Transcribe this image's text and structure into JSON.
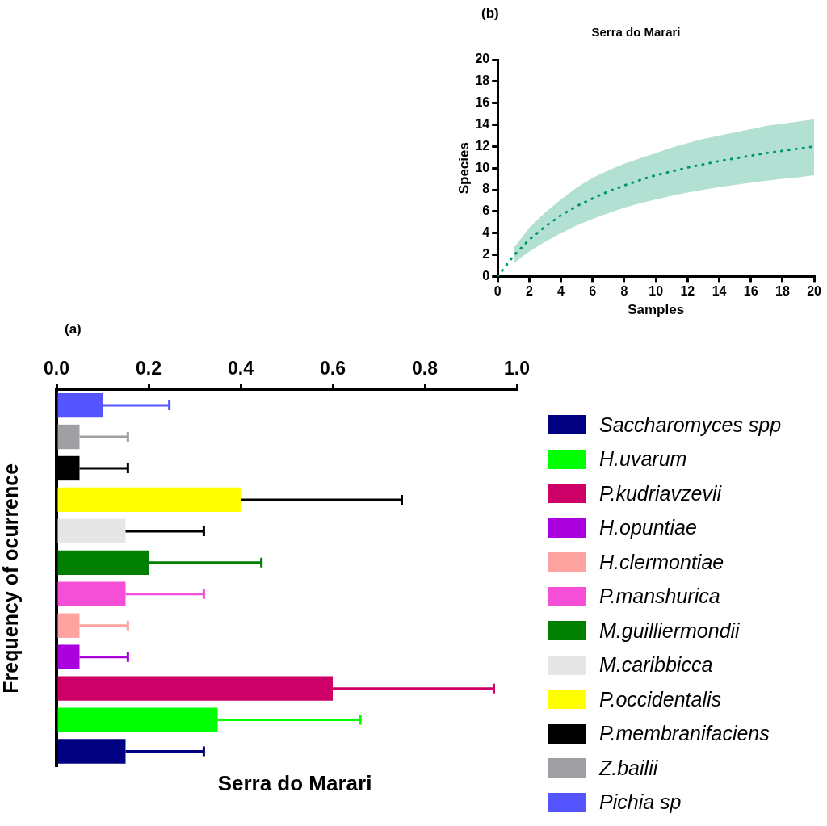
{
  "chart_data": [
    {
      "type": "line",
      "title": "Serra do Marari",
      "xlabel": "Samples",
      "ylabel": "Species",
      "annotations": [
        "(b)"
      ],
      "xlim": [
        0,
        20
      ],
      "xticks": [
        0,
        2,
        4,
        6,
        8,
        10,
        12,
        14,
        16,
        18,
        20
      ],
      "ylim": [
        0,
        20
      ],
      "yticks": [
        0,
        2,
        4,
        6,
        8,
        10,
        12,
        14,
        16,
        18,
        20
      ],
      "legend": false,
      "marker": "none",
      "line_style": "dotted",
      "series": [
        {
          "color": "#00996b",
          "x": [
            0,
            1,
            2,
            3,
            4,
            5,
            6,
            7,
            8,
            9,
            10,
            11,
            12,
            13,
            14,
            15,
            16,
            17,
            18,
            19,
            20
          ],
          "values": [
            0,
            1.9,
            3.4,
            4.6,
            5.65,
            6.5,
            7.2,
            7.85,
            8.4,
            8.9,
            9.35,
            9.7,
            10.05,
            10.35,
            10.65,
            10.9,
            11.15,
            11.4,
            11.6,
            11.8,
            12.0
          ],
          "lower": [
            null,
            1.2,
            2.3,
            3.2,
            4.0,
            4.7,
            5.3,
            5.85,
            6.35,
            6.75,
            7.1,
            7.45,
            7.75,
            8.0,
            8.25,
            8.45,
            8.65,
            8.85,
            9.0,
            9.15,
            9.35
          ],
          "upper": [
            null,
            2.6,
            4.5,
            5.9,
            7.1,
            8.2,
            9.1,
            9.8,
            10.4,
            10.9,
            11.4,
            11.9,
            12.3,
            12.7,
            13.0,
            13.3,
            13.6,
            13.9,
            14.1,
            14.3,
            14.5
          ]
        }
      ]
    },
    {
      "type": "bar",
      "orientation": "horizontal",
      "xlabel": "Serra do Marari",
      "ylabel": "Frequency of ocurrence",
      "annotations": [
        "(a)"
      ],
      "categories": [
        null,
        null,
        null,
        null,
        null,
        null,
        null,
        null,
        null,
        null,
        null,
        null
      ],
      "xlim": [
        0,
        1.0
      ],
      "xticks": [
        {
          "value": 0,
          "label": "0.0"
        },
        0.2,
        0.4,
        0.6,
        0.8,
        {
          "value": 1,
          "label": "1.0"
        }
      ],
      "legend": "right",
      "series": [
        {
          "name": "Saccharomyces spp",
          "color": "#000080",
          "values": [
            null,
            null,
            null,
            null,
            null,
            null,
            null,
            null,
            null,
            null,
            null,
            0.15
          ],
          "errors": [
            null,
            null,
            null,
            null,
            null,
            null,
            null,
            null,
            null,
            null,
            null,
            [
              0.15,
              0.32
            ]
          ]
        },
        {
          "name": "H.uvarum",
          "color": "#00ff00",
          "values": [
            null,
            null,
            null,
            null,
            null,
            null,
            null,
            null,
            null,
            null,
            0.35,
            null
          ],
          "errors": [
            null,
            null,
            null,
            null,
            null,
            null,
            null,
            null,
            null,
            null,
            [
              0.35,
              0.66
            ],
            null
          ]
        },
        {
          "name": "P.kudriavzevii",
          "color": "#cc0066",
          "values": [
            null,
            null,
            null,
            null,
            null,
            null,
            null,
            null,
            null,
            0.6,
            null,
            null
          ],
          "errors": [
            null,
            null,
            null,
            null,
            null,
            null,
            null,
            null,
            null,
            [
              0.6,
              0.95
            ],
            null,
            null
          ]
        },
        {
          "name": "H.opuntiae",
          "color": "#aa00dd",
          "values": [
            null,
            null,
            null,
            null,
            null,
            null,
            null,
            null,
            0.05,
            null,
            null,
            null
          ],
          "errors": [
            null,
            null,
            null,
            null,
            null,
            null,
            null,
            null,
            [
              0.05,
              0.155
            ],
            null,
            null,
            null
          ]
        },
        {
          "name": "H.clermontiae",
          "color": "#ffa3a0",
          "values": [
            null,
            null,
            null,
            null,
            null,
            null,
            null,
            0.05,
            null,
            null,
            null,
            null
          ],
          "errors": [
            null,
            null,
            null,
            null,
            null,
            null,
            null,
            [
              0.05,
              0.155
            ],
            null,
            null,
            null,
            null
          ]
        },
        {
          "name": "P.manshurica",
          "color": "#f54fd7",
          "values": [
            null,
            null,
            null,
            null,
            null,
            null,
            0.15,
            null,
            null,
            null,
            null,
            null
          ],
          "errors": [
            null,
            null,
            null,
            null,
            null,
            null,
            [
              0.15,
              0.32
            ],
            null,
            null,
            null,
            null,
            null
          ]
        },
        {
          "name": "M.guilliermondii",
          "color": "#007f00",
          "values": [
            null,
            null,
            null,
            null,
            null,
            0.2,
            null,
            null,
            null,
            null,
            null,
            null
          ],
          "errors": [
            null,
            null,
            null,
            null,
            null,
            [
              0.2,
              0.445
            ],
            null,
            null,
            null,
            null,
            null,
            null
          ]
        },
        {
          "name": "M.caribbicca",
          "color": "#e6e6e6",
          "values": [
            null,
            null,
            null,
            null,
            0.15,
            null,
            null,
            null,
            null,
            null,
            null,
            null
          ],
          "errors": [
            null,
            null,
            null,
            null,
            [
              0.15,
              0.32
            ],
            null,
            null,
            null,
            null,
            null,
            null,
            null
          ]
        },
        {
          "name": "P.occidentalis",
          "color": "#ffff00",
          "values": [
            null,
            null,
            null,
            0.4,
            null,
            null,
            null,
            null,
            null,
            null,
            null,
            null
          ],
          "errors": [
            null,
            null,
            null,
            [
              0.4,
              0.75
            ],
            null,
            null,
            null,
            null,
            null,
            null,
            null,
            null
          ]
        },
        {
          "name": "P.membranifaciens",
          "color": "#000000",
          "values": [
            null,
            null,
            0.05,
            null,
            null,
            null,
            null,
            null,
            null,
            null,
            null,
            null
          ],
          "errors": [
            null,
            null,
            [
              0.05,
              0.155
            ],
            null,
            null,
            null,
            null,
            null,
            null,
            null,
            null,
            null
          ]
        },
        {
          "name": "Z.bailii",
          "color": "#a0a0a4",
          "values": [
            null,
            0.05,
            null,
            null,
            null,
            null,
            null,
            null,
            null,
            null,
            null,
            null
          ],
          "errors": [
            null,
            [
              0.05,
              0.155
            ],
            null,
            null,
            null,
            null,
            null,
            null,
            null,
            null,
            null,
            null
          ]
        },
        {
          "name": "Pichia sp",
          "color": "#5555ff",
          "values": [
            0.1,
            null,
            null,
            null,
            null,
            null,
            null,
            null,
            null,
            null,
            null,
            null
          ],
          "errors": [
            [
              0.1,
              0.245
            ],
            null,
            null,
            null,
            null,
            null,
            null,
            null,
            null,
            null,
            null,
            null
          ]
        }
      ]
    }
  ]
}
